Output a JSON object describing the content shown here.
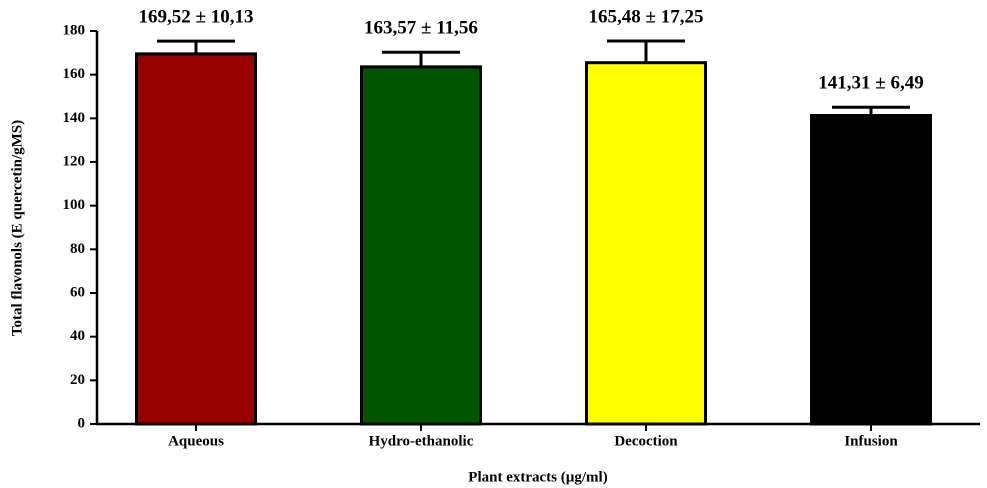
{
  "chart_data": {
    "type": "bar",
    "categories": [
      "Aqueous",
      "Hydro-ethanolic",
      "Decoction",
      "Infusion"
    ],
    "values": [
      169.52,
      163.57,
      165.48,
      141.31
    ],
    "errors": [
      5.85,
      6.67,
      9.96,
      3.75
    ],
    "value_labels": [
      "169,52 ± 10,13",
      "163,57 ± 11,56",
      "165,48 ± 17,25",
      "141,31 ± 6,49"
    ],
    "colors": [
      "#990000",
      "#005500",
      "#ffff00",
      "#000000"
    ],
    "xlabel": "Plant extracts (µg/ml)",
    "ylabel": "Total flavonols (E quercetin/gMS)",
    "ylim": [
      0,
      180
    ],
    "yticks": [
      0,
      20,
      40,
      60,
      80,
      100,
      120,
      140,
      160,
      180
    ]
  }
}
